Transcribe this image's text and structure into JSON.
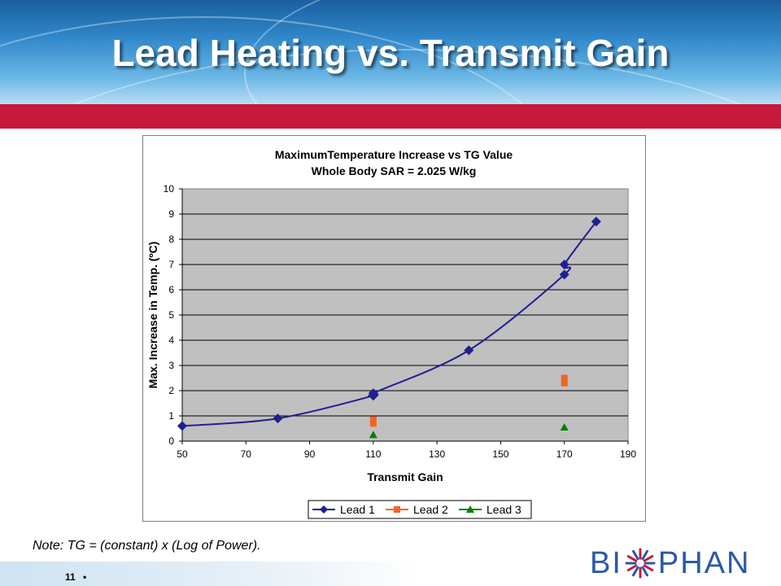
{
  "slide": {
    "title": "Lead Heating vs. Transmit Gain",
    "note": "Note: TG = (constant) x (Log of Power).",
    "page_number": "11",
    "page_bullet": "•",
    "logo": {
      "left": "BI",
      "right": "PHAN",
      "mark": "sunburst-logo-icon"
    }
  },
  "colors": {
    "header": "#2f86c8",
    "red_bar": "#c8183c",
    "plot_bg": "#c0c0c0",
    "lead1": "#1f1f8f",
    "lead2": "#f26522",
    "lead3": "#008000",
    "logo": "#2a5aa8"
  },
  "chart_data": {
    "type": "scatter",
    "title": "MaximumTemperature Increase vs TG Value",
    "subtitle": "Whole Body SAR = 2.025 W/kg",
    "xlabel": "Transmit Gain",
    "ylabel": "Max. Increase in Temp. (ºC)",
    "xlim": [
      50,
      190
    ],
    "ylim": [
      0,
      10
    ],
    "xticks": [
      50,
      70,
      90,
      110,
      130,
      150,
      170,
      190
    ],
    "yticks": [
      0,
      1,
      2,
      3,
      4,
      5,
      6,
      7,
      8,
      9,
      10
    ],
    "grid": "horizontal",
    "legend": "bottom",
    "series": [
      {
        "name": "Lead 1",
        "marker": "diamond",
        "line": true,
        "points": [
          [
            50,
            0.6
          ],
          [
            80,
            0.9
          ],
          [
            110,
            1.8
          ],
          [
            110,
            1.9
          ],
          [
            140,
            3.6
          ],
          [
            170,
            6.6
          ],
          [
            170,
            7.0
          ],
          [
            180,
            8.7
          ]
        ]
      },
      {
        "name": "Lead 2",
        "marker": "square",
        "line": false,
        "points": [
          [
            110,
            0.7
          ],
          [
            110,
            0.85
          ],
          [
            170,
            2.3
          ],
          [
            170,
            2.5
          ]
        ]
      },
      {
        "name": "Lead 3",
        "marker": "triangle",
        "line": false,
        "points": [
          [
            110,
            0.25
          ],
          [
            170,
            0.55
          ]
        ]
      }
    ]
  }
}
